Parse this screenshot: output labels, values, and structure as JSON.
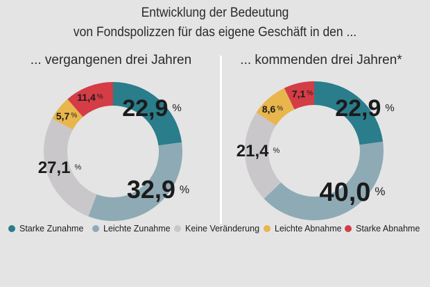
{
  "header": {
    "title_line1": "Entwicklung der Bedeutung",
    "title_line2": "von Fondspolizzen für das eigene Geschäft in den ..."
  },
  "colors": {
    "starke_zunahme": "#2a7d8a",
    "leichte_zunahme": "#8eaab5",
    "keine_veraenderung": "#c9c7ca",
    "leichte_abnahme": "#e8b64c",
    "starke_abnahme": "#d43c46"
  },
  "chart_data": [
    {
      "type": "pie",
      "title": "... vergangenen drei Jahren",
      "categories": [
        "Starke Zunahme",
        "Leichte Zunahme",
        "Keine Veränderung",
        "Leichte Abnahme",
        "Starke Abnahme"
      ],
      "values": [
        22.9,
        32.9,
        27.1,
        5.7,
        11.4
      ],
      "labels": [
        "22,9",
        "32,9",
        "27,1",
        "5,7",
        "11,4"
      ],
      "unit": "%"
    },
    {
      "type": "pie",
      "title": "... kommenden drei Jahren*",
      "categories": [
        "Starke Zunahme",
        "Leichte Zunahme",
        "Keine Veränderung",
        "Leichte Abnahme",
        "Starke Abnahme"
      ],
      "values": [
        22.9,
        40.0,
        21.4,
        8.6,
        7.1
      ],
      "labels": [
        "22,9",
        "40,0",
        "21,4",
        "8,6",
        "7,1"
      ],
      "unit": "%"
    }
  ],
  "legend": [
    "Starke Zunahme",
    "Leichte Zunahme",
    "Keine Veränderung",
    "Leichte Abnahme",
    "Starke Abnahme"
  ]
}
